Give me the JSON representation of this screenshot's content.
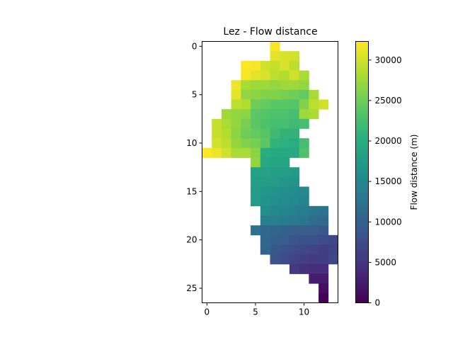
{
  "chart_data": {
    "type": "heatmap",
    "title": "Lez - Flow distance",
    "xlim": [
      -0.5,
      13.5
    ],
    "ylim": [
      26.5,
      -0.5
    ],
    "xticks": [
      0,
      5,
      10
    ],
    "yticks": [
      0,
      5,
      10,
      15,
      20,
      25
    ],
    "colorbar": {
      "label": "Flow distance (m)",
      "colormap": "viridis",
      "range": [
        0,
        32300
      ],
      "ticks": [
        0,
        5000,
        10000,
        15000,
        20000,
        25000,
        30000
      ]
    },
    "rows": [
      {
        "row": 0,
        "cells": [
          [
            7,
            32000
          ]
        ]
      },
      {
        "row": 1,
        "cells": [
          [
            7,
            31000
          ],
          [
            8,
            30500
          ],
          [
            9,
            30000
          ]
        ]
      },
      {
        "row": 2,
        "cells": [
          [
            4,
            32300
          ],
          [
            5,
            32000
          ],
          [
            6,
            30000
          ],
          [
            7,
            29500
          ],
          [
            8,
            30500
          ],
          [
            9,
            29000
          ]
        ]
      },
      {
        "row": 3,
        "cells": [
          [
            4,
            32000
          ],
          [
            5,
            31000
          ],
          [
            6,
            30500
          ],
          [
            7,
            29000
          ],
          [
            8,
            28500
          ],
          [
            9,
            30000
          ],
          [
            10,
            28000
          ]
        ]
      },
      {
        "row": 4,
        "cells": [
          [
            3,
            31500
          ],
          [
            4,
            28000
          ],
          [
            5,
            27500
          ],
          [
            6,
            27500
          ],
          [
            7,
            27000
          ],
          [
            8,
            27500
          ],
          [
            9,
            27500
          ],
          [
            10,
            27000
          ]
        ]
      },
      {
        "row": 5,
        "cells": [
          [
            3,
            31000
          ],
          [
            4,
            27000
          ],
          [
            5,
            26500
          ],
          [
            6,
            26000
          ],
          [
            7,
            26000
          ],
          [
            8,
            25500
          ],
          [
            9,
            25000
          ],
          [
            10,
            24500
          ],
          [
            11,
            28000
          ]
        ]
      },
      {
        "row": 6,
        "cells": [
          [
            3,
            29000
          ],
          [
            4,
            28500
          ],
          [
            5,
            25000
          ],
          [
            6,
            24500
          ],
          [
            7,
            24000
          ],
          [
            8,
            24000
          ],
          [
            9,
            23500
          ],
          [
            10,
            26000
          ],
          [
            11,
            29000
          ],
          [
            12,
            30000
          ]
        ]
      },
      {
        "row": 7,
        "cells": [
          [
            2,
            27500
          ],
          [
            3,
            27000
          ],
          [
            4,
            26500
          ],
          [
            5,
            24000
          ],
          [
            6,
            23500
          ],
          [
            7,
            23000
          ],
          [
            8,
            23000
          ],
          [
            9,
            22500
          ],
          [
            10,
            27500
          ],
          [
            11,
            28000
          ]
        ]
      },
      {
        "row": 8,
        "cells": [
          [
            1,
            29500
          ],
          [
            2,
            28000
          ],
          [
            3,
            27000
          ],
          [
            4,
            25500
          ],
          [
            5,
            24000
          ],
          [
            6,
            23000
          ],
          [
            7,
            22500
          ],
          [
            8,
            22500
          ],
          [
            9,
            22000
          ],
          [
            10,
            22500
          ]
        ]
      },
      {
        "row": 9,
        "cells": [
          [
            1,
            29500
          ],
          [
            2,
            28500
          ],
          [
            3,
            26500
          ],
          [
            4,
            25000
          ],
          [
            5,
            24500
          ],
          [
            6,
            23500
          ],
          [
            7,
            22000
          ],
          [
            8,
            21000
          ],
          [
            9,
            21000
          ]
        ]
      },
      {
        "row": 10,
        "cells": [
          [
            1,
            30000
          ],
          [
            2,
            29000
          ],
          [
            3,
            27000
          ],
          [
            4,
            26000
          ],
          [
            5,
            25500
          ],
          [
            6,
            24000
          ],
          [
            7,
            21000
          ],
          [
            8,
            20500
          ],
          [
            9,
            20000
          ],
          [
            10,
            22500
          ]
        ]
      },
      {
        "row": 11,
        "cells": [
          [
            0,
            32300
          ],
          [
            1,
            31500
          ],
          [
            2,
            30000
          ],
          [
            3,
            28000
          ],
          [
            4,
            28000
          ],
          [
            5,
            26500
          ],
          [
            6,
            20000
          ],
          [
            7,
            19500
          ],
          [
            8,
            19500
          ],
          [
            9,
            19500
          ],
          [
            10,
            23000
          ]
        ]
      },
      {
        "row": 12,
        "cells": [
          [
            5,
            27000
          ],
          [
            6,
            19500
          ],
          [
            7,
            19000
          ],
          [
            8,
            19000
          ]
        ]
      },
      {
        "row": 13,
        "cells": [
          [
            5,
            18500
          ],
          [
            6,
            18500
          ],
          [
            7,
            18000
          ],
          [
            8,
            18000
          ],
          [
            9,
            17500
          ]
        ]
      },
      {
        "row": 14,
        "cells": [
          [
            5,
            18000
          ],
          [
            6,
            18000
          ],
          [
            7,
            17500
          ],
          [
            8,
            17000
          ],
          [
            9,
            16500
          ]
        ]
      },
      {
        "row": 15,
        "cells": [
          [
            5,
            17500
          ],
          [
            6,
            17000
          ],
          [
            7,
            16500
          ],
          [
            8,
            16000
          ],
          [
            9,
            15500
          ],
          [
            10,
            15000
          ]
        ]
      },
      {
        "row": 16,
        "cells": [
          [
            5,
            17500
          ],
          [
            6,
            16500
          ],
          [
            7,
            16000
          ],
          [
            8,
            15500
          ],
          [
            9,
            15000
          ],
          [
            10,
            14500
          ]
        ]
      },
      {
        "row": 17,
        "cells": [
          [
            6,
            16000
          ],
          [
            7,
            15000
          ],
          [
            8,
            14500
          ],
          [
            9,
            14000
          ],
          [
            10,
            13500
          ],
          [
            11,
            12500
          ],
          [
            12,
            12000
          ]
        ]
      },
      {
        "row": 18,
        "cells": [
          [
            6,
            14000
          ],
          [
            7,
            14000
          ],
          [
            8,
            13500
          ],
          [
            9,
            13000
          ],
          [
            10,
            12500
          ],
          [
            11,
            11500
          ],
          [
            12,
            11000
          ]
        ]
      },
      {
        "row": 19,
        "cells": [
          [
            5,
            12000
          ],
          [
            6,
            11000
          ],
          [
            7,
            10500
          ],
          [
            8,
            10000
          ],
          [
            9,
            9500
          ],
          [
            10,
            9500
          ],
          [
            11,
            9500
          ],
          [
            12,
            9000
          ]
        ]
      },
      {
        "row": 20,
        "cells": [
          [
            6,
            11000
          ],
          [
            7,
            10000
          ],
          [
            8,
            9500
          ],
          [
            9,
            8500
          ],
          [
            10,
            8000
          ],
          [
            11,
            8000
          ],
          [
            12,
            7500
          ],
          [
            13,
            7000
          ]
        ]
      },
      {
        "row": 21,
        "cells": [
          [
            6,
            10500
          ],
          [
            7,
            9000
          ],
          [
            8,
            8000
          ],
          [
            9,
            7500
          ],
          [
            10,
            7000
          ],
          [
            11,
            6500
          ],
          [
            12,
            6000
          ],
          [
            13,
            6500
          ]
        ]
      },
      {
        "row": 22,
        "cells": [
          [
            7,
            8500
          ],
          [
            8,
            7500
          ],
          [
            9,
            6500
          ],
          [
            10,
            6000
          ],
          [
            11,
            5500
          ],
          [
            12,
            6000
          ],
          [
            13,
            7000
          ]
        ]
      },
      {
        "row": 23,
        "cells": [
          [
            9,
            5500
          ],
          [
            10,
            4500
          ],
          [
            11,
            4000
          ],
          [
            12,
            4000
          ]
        ]
      },
      {
        "row": 24,
        "cells": [
          [
            11,
            2500
          ],
          [
            12,
            2500
          ]
        ]
      },
      {
        "row": 25,
        "cells": [
          [
            12,
            1200
          ]
        ]
      },
      {
        "row": 26,
        "cells": [
          [
            12,
            200
          ]
        ]
      }
    ]
  }
}
